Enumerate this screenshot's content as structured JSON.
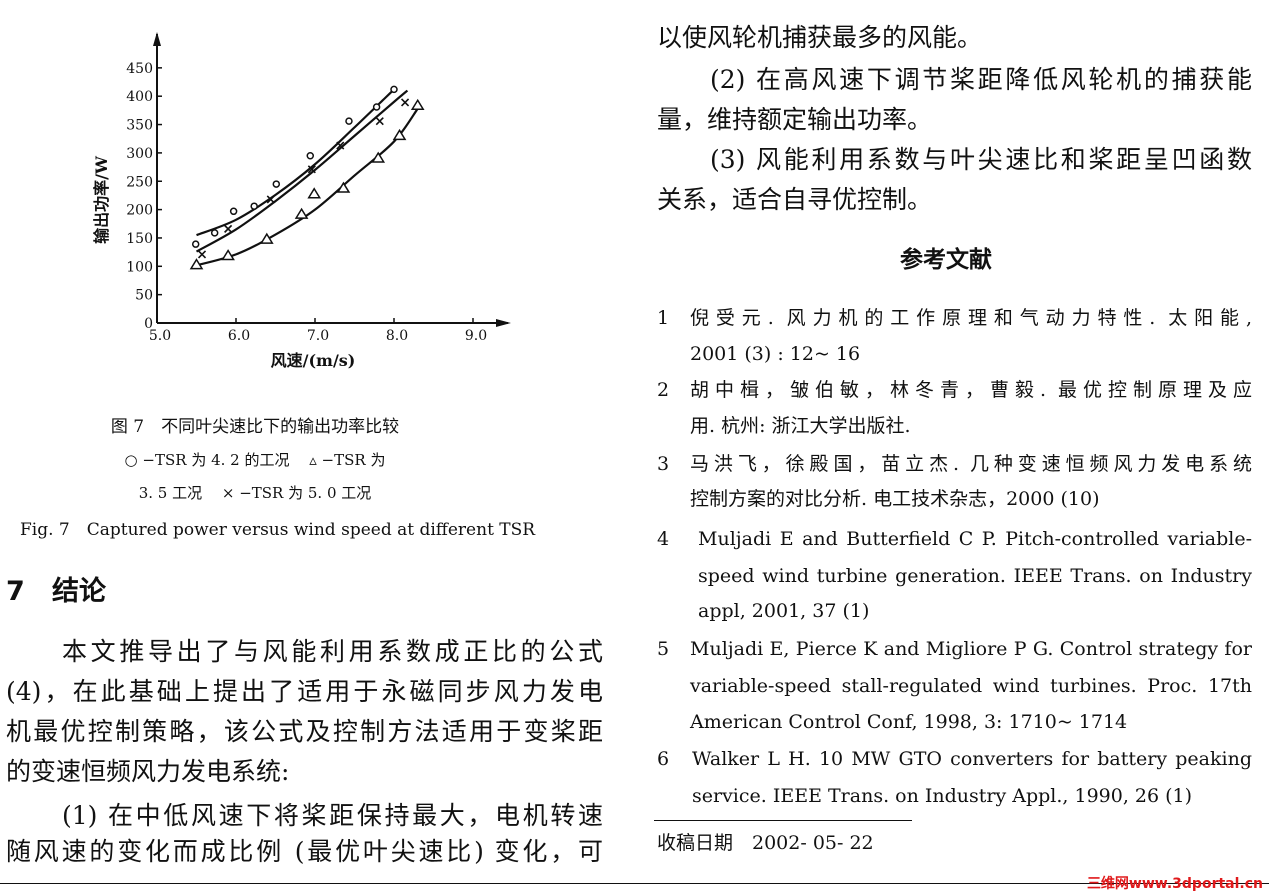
{
  "chart_data": {
    "type": "scatter",
    "xlabel": "风速/(m/s)",
    "ylabel": "输出功率/W",
    "xlim": [
      5.0,
      9.5
    ],
    "ylim": [
      0,
      450
    ],
    "x_ticks": [
      "5.0",
      "6.0",
      "7.0",
      "8.0",
      "9.0"
    ],
    "y_ticks": [
      "0",
      "50",
      "100",
      "150",
      "200",
      "250",
      "300",
      "350",
      "400",
      "450"
    ],
    "grid": false,
    "series": [
      {
        "marker": "circle",
        "x": [
          5.49,
          5.73,
          5.97,
          6.23,
          6.51,
          6.94,
          7.43,
          7.78,
          8.0
        ],
        "y": [
          139,
          159,
          197,
          206,
          245,
          295,
          356,
          381,
          412
        ],
        "fit_x": [
          5.5,
          6.0,
          6.5,
          7.0,
          7.5,
          8.0
        ],
        "fit_y": [
          155,
          182,
          226,
          280,
          345,
          412
        ]
      },
      {
        "marker": "cross",
        "x": [
          5.57,
          5.9,
          6.44,
          6.96,
          7.32,
          7.82,
          8.14
        ],
        "y": [
          121,
          166,
          218,
          271,
          313,
          356,
          389
        ],
        "fit_x": [
          5.5,
          6.0,
          6.5,
          7.0,
          7.5,
          8.0,
          8.17
        ],
        "fit_y": [
          126,
          165,
          215,
          270,
          330,
          390,
          410
        ]
      },
      {
        "marker": "triangle",
        "x": [
          5.5,
          5.9,
          6.39,
          6.83,
          6.99,
          7.36,
          7.8,
          8.07,
          8.3
        ],
        "y": [
          103,
          119,
          148,
          192,
          228,
          238,
          291,
          331,
          384
        ],
        "fit_x": [
          5.45,
          6.0,
          6.5,
          7.0,
          7.5,
          8.0,
          8.3
        ],
        "fit_y": [
          100,
          121,
          156,
          200,
          260,
          320,
          378
        ]
      }
    ]
  },
  "caption": {
    "title": "图 7　不同叶尖速比下的输出功率比较",
    "legend_line1": "○ −TSR 为 4. 2 的工况　 ▵ −TSR 为",
    "legend_line2": "3. 5 工况　 × −TSR 为 5. 0 工况",
    "english": "Fig. 7　Captured power versus wind speed at different TSR"
  },
  "section": {
    "number": "7",
    "title": "结论"
  },
  "left_body": [
    "本文推导出了与风能利用系数成正比的公式",
    "(4)，在此基础上提出了适用于永磁同步风力发电",
    "机最优控制策略，该公式及控制方法适用于变桨距",
    "的变速恒频风力发电系统:",
    "(1) 在中低风速下将桨距保持最大，电机转速",
    "随风速的变化而成比例 (最优叶尖速比) 变化，可"
  ],
  "right_body": [
    "以使风轮机捕获最多的风能。",
    "(2) 在高风速下调节桨距降低风轮机的捕获能",
    "量，维持额定输出功率。",
    "(3) 风能利用系数与叶尖速比和桨距呈凹函数",
    "关系，适合自寻优控制。"
  ],
  "references_title": "参考文献",
  "references": [
    {
      "num": "1",
      "lines": [
        "倪受元. 风力机的工作原理和气动力特性. 太阳能,",
        "2001 (3) : 12~ 16"
      ]
    },
    {
      "num": "2",
      "lines": [
        "胡中楫，皱伯敏，林冬青，曹毅. 最优控制原理及应",
        "用. 杭州: 浙江大学出版社."
      ]
    },
    {
      "num": "3",
      "lines": [
        "马洪飞，徐殿国，苗立杰. 几种变速恒频风力发电系统",
        "控制方案的对比分析. 电工技术杂志，2000 (10)"
      ]
    },
    {
      "num": "4",
      "lines": [
        "Muljadi E and Butterfield C P. Pitch-controlled variable-",
        "speed wind turbine generation. IEEE Trans. on Industry",
        "appl, 2001, 37 (1)"
      ]
    },
    {
      "num": "5",
      "lines": [
        "Muljadi E, Pierce K and Migliore P G. Control strategy for",
        "variable-speed stall-regulated wind turbines. Proc. 17th",
        "American Control Conf, 1998, 3: 1710~ 1714"
      ]
    },
    {
      "num": "6",
      "lines": [
        "Walker L H. 10 MW GTO converters for battery peaking",
        "service. IEEE Trans. on Industry Appl., 1990, 26 (1)"
      ]
    }
  ],
  "received": "收稿日期　2002- 05- 22",
  "watermark": "三维网www.3dportal.cn"
}
